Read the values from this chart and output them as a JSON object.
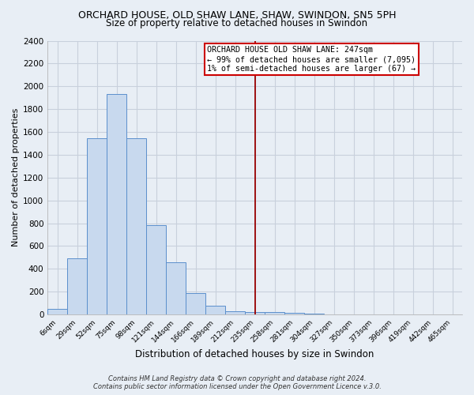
{
  "title": "ORCHARD HOUSE, OLD SHAW LANE, SHAW, SWINDON, SN5 5PH",
  "subtitle": "Size of property relative to detached houses in Swindon",
  "xlabel": "Distribution of detached houses by size in Swindon",
  "ylabel": "Number of detached properties",
  "categories": [
    "6sqm",
    "29sqm",
    "52sqm",
    "75sqm",
    "98sqm",
    "121sqm",
    "144sqm",
    "166sqm",
    "189sqm",
    "212sqm",
    "235sqm",
    "258sqm",
    "281sqm",
    "304sqm",
    "327sqm",
    "350sqm",
    "373sqm",
    "396sqm",
    "419sqm",
    "442sqm",
    "465sqm"
  ],
  "values": [
    50,
    490,
    1545,
    1930,
    1545,
    780,
    460,
    185,
    80,
    25,
    20,
    20,
    15,
    10,
    0,
    0,
    0,
    0,
    0,
    0,
    0
  ],
  "bar_color": "#c8d9ee",
  "bar_edge_color": "#5b8fcc",
  "grid_color": "#c8d0dc",
  "background_color": "#e8eef5",
  "vline_x": 10,
  "vline_color": "#990000",
  "annotation_text": "ORCHARD HOUSE OLD SHAW LANE: 247sqm\n← 99% of detached houses are smaller (7,095)\n1% of semi-detached houses are larger (67) →",
  "annotation_box_facecolor": "#ffffff",
  "annotation_box_edgecolor": "#cc0000",
  "footer_line1": "Contains HM Land Registry data © Crown copyright and database right 2024.",
  "footer_line2": "Contains public sector information licensed under the Open Government Licence v.3.0.",
  "ylim": [
    0,
    2400
  ],
  "yticks": [
    0,
    200,
    400,
    600,
    800,
    1000,
    1200,
    1400,
    1600,
    1800,
    2000,
    2200,
    2400
  ]
}
